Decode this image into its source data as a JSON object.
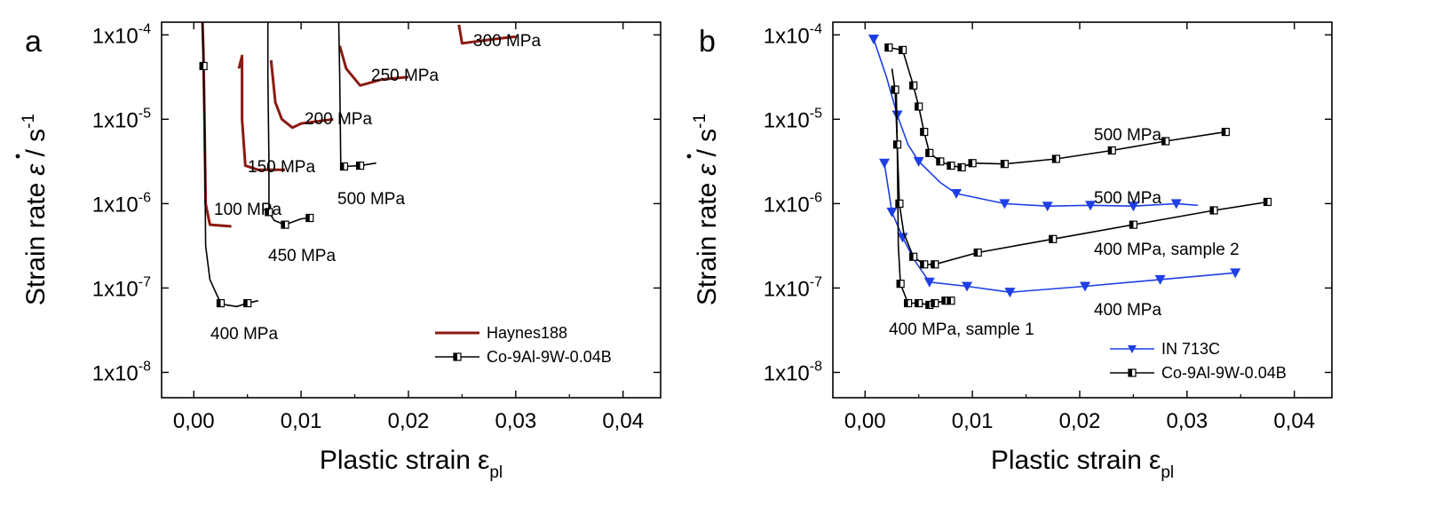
{
  "chart_data": [
    {
      "panel": "a",
      "type": "line",
      "xlabel": "Plastic strain",
      "xlabel_symbol": "ε",
      "xlabel_sub": "pl",
      "ylabel": "Strain rate",
      "ylabel_symbol": "ε",
      "ylabel_unit": "/ s",
      "ylabel_exp": "-1",
      "xlim": [
        -0.003,
        0.0435
      ],
      "ylim": [
        -8.3,
        -3.85
      ],
      "y_scale": "log",
      "x_ticks": [
        0.0,
        0.01,
        0.02,
        0.03,
        0.04
      ],
      "x_tick_labels": [
        "0,00",
        "0,01",
        "0,02",
        "0,03",
        "0,04"
      ],
      "y_ticks": [
        -8,
        -7,
        -6,
        -5,
        -4
      ],
      "y_tick_labels": [
        "1x10-8",
        "1x10-7",
        "1x10-6",
        "1x10-5",
        "1x10-4"
      ],
      "legend_position": "bottom-right",
      "series": [
        {
          "name": "Haynes188",
          "color": "#8b1a12",
          "marker": "none",
          "segments": [
            [
              [
                0.0008,
                -3.8
              ],
              [
                0.0009,
                -4.2
              ],
              [
                0.001,
                -5.0
              ],
              [
                0.0011,
                -6.0
              ],
              [
                0.0015,
                -6.25
              ],
              [
                0.0035,
                -6.27
              ]
            ],
            [
              [
                0.0042,
                -4.4
              ],
              [
                0.0045,
                -4.25
              ],
              [
                0.0045,
                -5.0
              ],
              [
                0.0048,
                -5.55
              ],
              [
                0.006,
                -5.6
              ],
              [
                0.0085,
                -5.6
              ]
            ],
            [
              [
                0.0072,
                -4.3
              ],
              [
                0.0076,
                -4.8
              ],
              [
                0.0082,
                -5.0
              ],
              [
                0.0092,
                -5.1
              ],
              [
                0.01,
                -5.05
              ],
              [
                0.013,
                -5.0
              ]
            ],
            [
              [
                0.0136,
                -4.13
              ],
              [
                0.0142,
                -4.4
              ],
              [
                0.0155,
                -4.6
              ],
              [
                0.0175,
                -4.53
              ],
              [
                0.02,
                -4.5
              ]
            ],
            [
              [
                0.0247,
                -3.88
              ],
              [
                0.025,
                -4.1
              ],
              [
                0.028,
                -4.05
              ],
              [
                0.03,
                -4.02
              ]
            ]
          ]
        },
        {
          "name": "Co-9Al-9W-0.04B",
          "color": "#000000",
          "marker": "half-filled-square",
          "segments": [
            [
              [
                0.0008,
                -3.8
              ],
              [
                0.0009,
                -4.37
              ],
              [
                0.001,
                -5.0
              ],
              [
                0.0011,
                -6.5
              ],
              [
                0.0015,
                -6.9
              ],
              [
                0.0025,
                -7.18
              ],
              [
                0.003,
                -7.2
              ],
              [
                0.004,
                -7.22
              ],
              [
                0.005,
                -7.18
              ],
              [
                0.006,
                -7.15
              ]
            ],
            [
              [
                0.0069,
                -3.8
              ],
              [
                0.0069,
                -4.5
              ],
              [
                0.007,
                -5.5
              ],
              [
                0.007,
                -6.1
              ],
              [
                0.0075,
                -6.2
              ],
              [
                0.0085,
                -6.25
              ],
              [
                0.01,
                -6.18
              ],
              [
                0.0108,
                -6.17
              ]
            ],
            [
              [
                0.0135,
                -3.8
              ],
              [
                0.0136,
                -4.5
              ],
              [
                0.0137,
                -5.55
              ],
              [
                0.014,
                -5.56
              ],
              [
                0.0155,
                -5.55
              ],
              [
                0.017,
                -5.52
              ]
            ]
          ],
          "marker_points": [
            [
              0.0009,
              -4.37
            ],
            [
              0.0025,
              -7.18
            ],
            [
              0.005,
              -7.18
            ],
            [
              0.007,
              -6.1
            ],
            [
              0.0085,
              -6.25
            ],
            [
              0.0108,
              -6.17
            ],
            [
              0.014,
              -5.56
            ],
            [
              0.0155,
              -5.55
            ]
          ]
        }
      ],
      "annotations": [
        "300 MPa",
        "250 MPa",
        "200 MPa",
        "150 MPa",
        "100 MPa",
        "500 MPa",
        "450 MPa",
        "400 MPa"
      ]
    },
    {
      "panel": "b",
      "type": "line",
      "xlabel": "Plastic strain",
      "xlabel_symbol": "ε",
      "xlabel_sub": "pl",
      "ylabel": "Strain rate",
      "ylabel_symbol": "ε",
      "ylabel_unit": "/ s",
      "ylabel_exp": "-1",
      "xlim": [
        -0.003,
        0.0435
      ],
      "ylim": [
        -8.3,
        -3.85
      ],
      "y_scale": "log",
      "x_ticks": [
        0.0,
        0.01,
        0.02,
        0.03,
        0.04
      ],
      "x_tick_labels": [
        "0,00",
        "0,01",
        "0,02",
        "0,03",
        "0,04"
      ],
      "y_ticks": [
        -8,
        -7,
        -6,
        -5,
        -4
      ],
      "y_tick_labels": [
        "1x10-8",
        "1x10-7",
        "1x10-6",
        "1x10-5",
        "1x10-4"
      ],
      "legend_position": "bottom-right",
      "series": [
        {
          "name": "IN 713C",
          "color": "#1e3fe6",
          "marker": "triangle-down",
          "segments": [
            [
              [
                0.0008,
                -4.05
              ],
              [
                0.002,
                -4.5
              ],
              [
                0.003,
                -4.95
              ],
              [
                0.004,
                -5.3
              ],
              [
                0.005,
                -5.5
              ],
              [
                0.007,
                -5.75
              ],
              [
                0.0085,
                -5.88
              ],
              [
                0.013,
                -6.0
              ],
              [
                0.017,
                -6.03
              ],
              [
                0.021,
                -6.02
              ],
              [
                0.025,
                -6.03
              ],
              [
                0.029,
                -6.0
              ],
              [
                0.031,
                -6.02
              ]
            ],
            [
              [
                0.0018,
                -5.52
              ],
              [
                0.0025,
                -6.1
              ],
              [
                0.0035,
                -6.4
              ],
              [
                0.0045,
                -6.65
              ],
              [
                0.006,
                -6.93
              ],
              [
                0.0095,
                -6.98
              ],
              [
                0.0135,
                -7.05
              ],
              [
                0.0205,
                -6.98
              ],
              [
                0.0275,
                -6.9
              ],
              [
                0.0345,
                -6.82
              ]
            ]
          ],
          "marker_points": [
            [
              0.0008,
              -4.05
            ],
            [
              0.003,
              -4.95
            ],
            [
              0.005,
              -5.5
            ],
            [
              0.0085,
              -5.88
            ],
            [
              0.013,
              -6.0
            ],
            [
              0.017,
              -6.03
            ],
            [
              0.021,
              -6.02
            ],
            [
              0.025,
              -6.03
            ],
            [
              0.029,
              -6.0
            ],
            [
              0.0018,
              -5.52
            ],
            [
              0.0025,
              -6.1
            ],
            [
              0.0035,
              -6.4
            ],
            [
              0.006,
              -6.93
            ],
            [
              0.0095,
              -6.98
            ],
            [
              0.0135,
              -7.05
            ],
            [
              0.0205,
              -6.98
            ],
            [
              0.0275,
              -6.9
            ],
            [
              0.0345,
              -6.82
            ]
          ]
        },
        {
          "name": "Co-9Al-9W-0.04B",
          "color": "#000000",
          "marker": "half-filled-square",
          "segments": [
            [
              [
                0.0022,
                -4.15
              ],
              [
                0.0035,
                -4.18
              ],
              [
                0.0045,
                -4.6
              ],
              [
                0.005,
                -4.85
              ],
              [
                0.0055,
                -5.15
              ],
              [
                0.006,
                -5.4
              ],
              [
                0.007,
                -5.5
              ],
              [
                0.008,
                -5.55
              ],
              [
                0.009,
                -5.57
              ],
              [
                0.01,
                -5.52
              ],
              [
                0.013,
                -5.53
              ],
              [
                0.0178,
                -5.47
              ],
              [
                0.023,
                -5.37
              ],
              [
                0.028,
                -5.26
              ],
              [
                0.0336,
                -5.15
              ]
            ],
            [
              [
                0.0025,
                -4.4
              ],
              [
                0.0028,
                -4.65
              ],
              [
                0.003,
                -5.3
              ],
              [
                0.0032,
                -6.0
              ],
              [
                0.0036,
                -6.35
              ],
              [
                0.0045,
                -6.63
              ],
              [
                0.0055,
                -6.72
              ],
              [
                0.0065,
                -6.72
              ],
              [
                0.0105,
                -6.58
              ],
              [
                0.0175,
                -6.42
              ],
              [
                0.025,
                -6.25
              ],
              [
                0.0325,
                -6.08
              ],
              [
                0.0375,
                -5.98
              ]
            ],
            [
              [
                0.0029,
                -4.6
              ],
              [
                0.003,
                -5.3
              ],
              [
                0.0031,
                -6.5
              ],
              [
                0.0033,
                -6.95
              ],
              [
                0.004,
                -7.18
              ],
              [
                0.005,
                -7.18
              ],
              [
                0.006,
                -7.2
              ],
              [
                0.0065,
                -7.18
              ],
              [
                0.0075,
                -7.15
              ],
              [
                0.008,
                -7.15
              ]
            ]
          ],
          "marker_points": [
            [
              0.0022,
              -4.15
            ],
            [
              0.0035,
              -4.18
            ],
            [
              0.0045,
              -4.6
            ],
            [
              0.005,
              -4.85
            ],
            [
              0.0055,
              -5.15
            ],
            [
              0.006,
              -5.4
            ],
            [
              0.007,
              -5.5
            ],
            [
              0.008,
              -5.55
            ],
            [
              0.009,
              -5.57
            ],
            [
              0.01,
              -5.52
            ],
            [
              0.013,
              -5.53
            ],
            [
              0.0178,
              -5.47
            ],
            [
              0.023,
              -5.37
            ],
            [
              0.028,
              -5.26
            ],
            [
              0.0336,
              -5.15
            ],
            [
              0.0028,
              -4.65
            ],
            [
              0.0032,
              -6.0
            ],
            [
              0.0045,
              -6.63
            ],
            [
              0.0055,
              -6.72
            ],
            [
              0.0065,
              -6.72
            ],
            [
              0.0105,
              -6.58
            ],
            [
              0.0175,
              -6.42
            ],
            [
              0.025,
              -6.25
            ],
            [
              0.0325,
              -6.08
            ],
            [
              0.0375,
              -5.98
            ],
            [
              0.003,
              -5.3
            ],
            [
              0.0033,
              -6.95
            ],
            [
              0.004,
              -7.18
            ],
            [
              0.005,
              -7.18
            ],
            [
              0.006,
              -7.2
            ],
            [
              0.0065,
              -7.18
            ],
            [
              0.0075,
              -7.15
            ],
            [
              0.008,
              -7.15
            ]
          ]
        }
      ],
      "annotations": [
        "500 MPa",
        "500 MPa",
        "400 MPa, sample 2",
        "400 MPa",
        "400 MPa, sample 1"
      ]
    }
  ]
}
